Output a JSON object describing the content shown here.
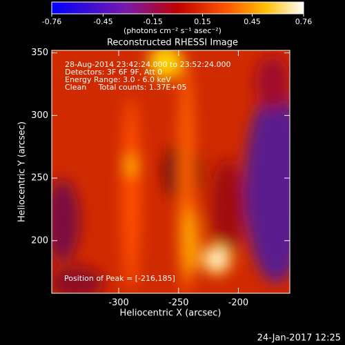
{
  "chart_data": {
    "type": "heatmap",
    "title": "Reconstructed RHESSI Image",
    "colorbar": {
      "label": "(photons cm⁻² s⁻¹ asec⁻²)",
      "lim": [
        -0.76,
        0.76
      ],
      "ticks": [
        -0.76,
        -0.45,
        -0.15,
        0.15,
        0.45,
        0.76
      ]
    },
    "x_label": "Heliocentric X (arcsec)",
    "y_label": "Heliocentric Y (arcsec)",
    "xlim": [
      -356,
      -157
    ],
    "xticks": [
      -300,
      -250,
      -200
    ],
    "ylim": [
      158,
      352
    ],
    "yticks": [
      200,
      250,
      300,
      350
    ],
    "annotations": [
      "28-Aug-2014 23:42:24.000 to 23:52:24.000",
      "Detectors: 3F 6F 9F, Att 0",
      "Energy Range: 3.0 - 6.0 keV",
      "Clean     Total counts: 1.37E+05"
    ],
    "peak_label": "Position of Peak = [-216,185]",
    "footer": "24-Jan-2017 12:25"
  }
}
